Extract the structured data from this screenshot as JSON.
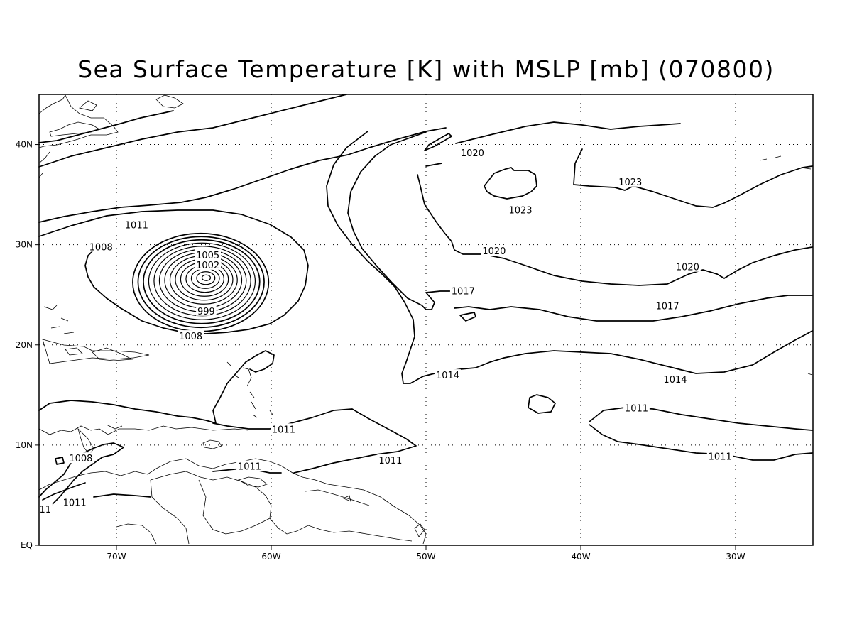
{
  "title": "Sea Surface Temperature [K] with MSLP [mb] (070800)",
  "map": {
    "lon_range": [
      -75,
      -25
    ],
    "lat_range": [
      0,
      45
    ],
    "lon_ticks": [
      {
        "value": -70,
        "label": "70W"
      },
      {
        "value": -60,
        "label": "60W"
      },
      {
        "value": -50,
        "label": "50W"
      },
      {
        "value": -40,
        "label": "40W"
      },
      {
        "value": -30,
        "label": "30W"
      }
    ],
    "lat_ticks": [
      {
        "value": 0,
        "label": "EQ"
      },
      {
        "value": 10,
        "label": "10N"
      },
      {
        "value": 20,
        "label": "20N"
      },
      {
        "value": 30,
        "label": "30N"
      },
      {
        "value": 40,
        "label": "40N"
      }
    ],
    "grid": "dotted",
    "contour_labels": [
      {
        "text": "1020",
        "lon": -47.0,
        "lat": 39.2
      },
      {
        "text": "1023",
        "lon": -36.8,
        "lat": 36.3
      },
      {
        "text": "1023",
        "lon": -43.9,
        "lat": 33.5
      },
      {
        "text": "1011",
        "lon": -68.7,
        "lat": 32.0
      },
      {
        "text": "1008",
        "lon": -71.0,
        "lat": 29.8
      },
      {
        "text": "1005",
        "lon": -64.1,
        "lat": 29.0
      },
      {
        "text": "1002",
        "lon": -64.1,
        "lat": 28.0
      },
      {
        "text": "999",
        "lon": -64.2,
        "lat": 23.4
      },
      {
        "text": "1008",
        "lon": -65.2,
        "lat": 20.9
      },
      {
        "text": "1020",
        "lon": -45.6,
        "lat": 29.4
      },
      {
        "text": "1020",
        "lon": -33.1,
        "lat": 27.8
      },
      {
        "text": "1017",
        "lon": -47.6,
        "lat": 25.4
      },
      {
        "text": "1017",
        "lon": -34.4,
        "lat": 23.9
      },
      {
        "text": "1014",
        "lon": -48.6,
        "lat": 17.0
      },
      {
        "text": "1014",
        "lon": -33.9,
        "lat": 16.6
      },
      {
        "text": "1011",
        "lon": -36.4,
        "lat": 13.7
      },
      {
        "text": "1011",
        "lon": -59.2,
        "lat": 11.6
      },
      {
        "text": "1011",
        "lon": -52.3,
        "lat": 8.5
      },
      {
        "text": "1011",
        "lon": -61.4,
        "lat": 7.9
      },
      {
        "text": "1011",
        "lon": -31.0,
        "lat": 8.9
      },
      {
        "text": "1008",
        "lon": -72.3,
        "lat": 8.7
      },
      {
        "text": "1011",
        "lon": -72.7,
        "lat": 4.3
      },
      {
        "text": "11",
        "lon": -74.6,
        "lat": 3.6
      }
    ],
    "low_center": {
      "lon": -64.2,
      "lat": 26.7,
      "rings": 14
    }
  }
}
